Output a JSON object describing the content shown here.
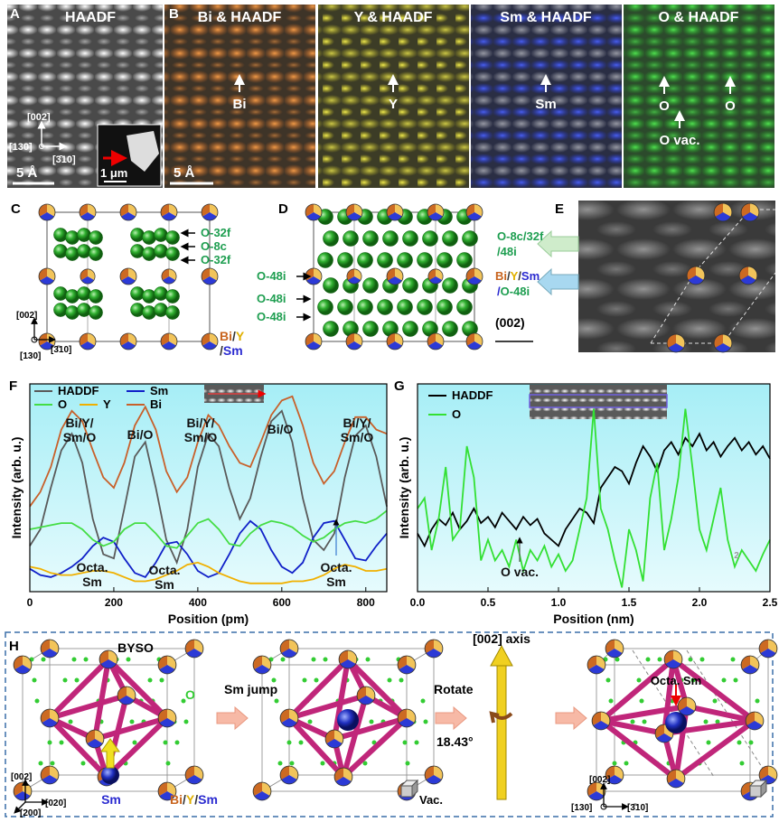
{
  "panel_A": {
    "letter": "A",
    "title": "HAADF",
    "scale_bar": "5 Å",
    "inset_scale_bar": "1 μm",
    "directions": [
      "[002]",
      "[130]",
      "[3̄10]"
    ]
  },
  "panel_B": {
    "letter": "B",
    "scale_bar": "5 Å",
    "maps": [
      {
        "title": "Bi & HAADF",
        "labels": [
          "Bi"
        ]
      },
      {
        "title": "Y & HAADF",
        "labels": [
          "Y"
        ]
      },
      {
        "title": "Sm & HAADF",
        "labels": [
          "Sm"
        ]
      },
      {
        "title": "O & HAADF",
        "labels": [
          "O",
          "O",
          "O vac."
        ]
      }
    ]
  },
  "panel_C": {
    "letter": "C",
    "sites": [
      "O-32f",
      "O-8c",
      "O-32f"
    ],
    "legend": [
      [
        "Bi",
        "/",
        "Y"
      ],
      [
        "/",
        "Sm"
      ]
    ],
    "directions": [
      "[002]",
      "[130]",
      "[3̄10]"
    ]
  },
  "panel_D": {
    "letter": "D",
    "sites": [
      "O-48i",
      "O-48i",
      "O-48i"
    ]
  },
  "panel_E": {
    "letter": "E",
    "labels": [
      [
        "O-8c/32f"
      ],
      [
        "/48i"
      ],
      [
        "Bi",
        "/",
        "Y",
        "/",
        "Sm"
      ],
      [
        "/",
        "O-48i"
      ]
    ],
    "plane": "(002)"
  },
  "panel_H": {
    "letter": "H",
    "structure": "BYSO",
    "oxygen": "O",
    "sm": "Sm",
    "legend": [
      "Bi",
      "/",
      "Y",
      "/",
      "Sm"
    ],
    "step1": "Sm jump",
    "vacancy": "Vac.",
    "step2": "Rotate",
    "angle": "18.43°",
    "axis": "[002] axis",
    "octa": "Octa. Sm",
    "directions_left": [
      "[002]",
      "[020]",
      "[200]"
    ],
    "directions_right": [
      "[002]",
      "[130]",
      "[3̄10]"
    ]
  },
  "chart_data": [
    {
      "type": "line",
      "letter": "F",
      "xlabel": "Position (pm)",
      "ylabel": "Intensity (arb. u.)",
      "x": [
        0,
        25,
        50,
        75,
        100,
        125,
        150,
        175,
        200,
        225,
        250,
        275,
        300,
        325,
        350,
        375,
        400,
        425,
        450,
        475,
        500,
        525,
        550,
        575,
        600,
        625,
        650,
        675,
        700,
        725,
        750,
        775,
        800,
        825,
        850
      ],
      "xlim": [
        0,
        850
      ],
      "xticks": [
        0,
        200,
        400,
        600,
        800
      ],
      "ylim": [
        0,
        100
      ],
      "series": [
        {
          "name": "HADDF",
          "color": "#5a5a5a",
          "values": [
            22,
            30,
            50,
            68,
            76,
            62,
            35,
            18,
            16,
            40,
            65,
            72,
            50,
            25,
            14,
            30,
            60,
            76,
            70,
            50,
            35,
            45,
            65,
            82,
            87,
            72,
            45,
            25,
            20,
            28,
            55,
            75,
            80,
            65,
            41
          ]
        },
        {
          "name": "Sm",
          "color": "#1020c8",
          "values": [
            11,
            8,
            7,
            9,
            12,
            16,
            22,
            26,
            24,
            16,
            9,
            7,
            14,
            23,
            24,
            18,
            10,
            7,
            9,
            18,
            28,
            34,
            30,
            20,
            12,
            9,
            14,
            26,
            33,
            34,
            25,
            16,
            15,
            22,
            28
          ]
        },
        {
          "name": "O",
          "color": "#44dd44",
          "values": [
            30,
            31,
            32,
            33,
            33,
            30,
            25,
            22,
            24,
            30,
            33,
            33,
            28,
            22,
            21,
            27,
            33,
            35,
            30,
            23,
            22,
            28,
            32,
            34,
            33,
            31,
            27,
            24,
            26,
            30,
            33,
            34,
            33,
            35,
            39
          ]
        },
        {
          "name": "Y",
          "color": "#f0b000",
          "values": [
            12,
            11,
            9,
            8,
            8,
            9,
            10,
            10,
            9,
            7,
            5,
            5,
            6,
            8,
            10,
            13,
            14,
            12,
            9,
            7,
            5,
            4,
            4,
            4,
            4,
            5,
            5,
            6,
            8,
            11,
            13,
            12,
            10,
            10,
            11
          ]
        },
        {
          "name": "Bi",
          "color": "#c8602a",
          "values": [
            41,
            48,
            60,
            78,
            87,
            82,
            68,
            55,
            50,
            62,
            80,
            89,
            78,
            58,
            48,
            55,
            72,
            85,
            80,
            70,
            62,
            60,
            72,
            85,
            92,
            94,
            80,
            62,
            52,
            58,
            72,
            84,
            84,
            78,
            76
          ]
        }
      ],
      "annotations": [
        {
          "lines": [
            "Bi/Y/",
            "Sm/O"
          ]
        },
        {
          "lines": [
            "Bi/O"
          ]
        },
        {
          "lines": [
            "Bi/Y/",
            "Sm/O"
          ]
        },
        {
          "lines": [
            "Bi/O"
          ]
        },
        {
          "lines": [
            "Bi/Y/",
            "Sm/O"
          ]
        },
        {
          "lines": [
            "Octa.",
            "Sm"
          ]
        },
        {
          "lines": [
            "Octa.",
            "Sm"
          ]
        },
        {
          "lines": [
            "Octa.",
            "Sm"
          ]
        }
      ]
    },
    {
      "type": "line",
      "letter": "G",
      "xlabel": "Position (nm)",
      "ylabel": "Intensity (arb. u.)",
      "x": [
        0,
        0.05,
        0.1,
        0.15,
        0.2,
        0.25,
        0.3,
        0.35,
        0.4,
        0.45,
        0.5,
        0.55,
        0.6,
        0.65,
        0.7,
        0.75,
        0.8,
        0.85,
        0.9,
        0.95,
        1,
        1.05,
        1.1,
        1.15,
        1.2,
        1.25,
        1.3,
        1.35,
        1.4,
        1.45,
        1.5,
        1.55,
        1.6,
        1.65,
        1.7,
        1.75,
        1.8,
        1.85,
        1.9,
        1.95,
        2,
        2.05,
        2.1,
        2.15,
        2.2,
        2.25,
        2.3,
        2.35,
        2.4,
        2.45,
        2.5
      ],
      "xlim": [
        0,
        2.5
      ],
      "xticks": [
        {
          "value": 0,
          "label": "0.0"
        },
        0.5,
        {
          "value": 1,
          "label": "1.0"
        },
        1.5,
        {
          "value": 2,
          "label": "2.0"
        },
        2.5
      ],
      "ylim": [
        0,
        100
      ],
      "series": [
        {
          "name": "HADDF",
          "color": "#000000",
          "values": [
            28,
            22,
            30,
            35,
            32,
            38,
            30,
            34,
            40,
            33,
            36,
            31,
            38,
            34,
            30,
            36,
            32,
            35,
            28,
            25,
            22,
            30,
            35,
            40,
            38,
            33,
            50,
            55,
            60,
            58,
            52,
            62,
            70,
            65,
            58,
            68,
            72,
            66,
            74,
            70,
            76,
            68,
            72,
            65,
            70,
            74,
            68,
            72,
            66,
            70,
            64
          ]
        },
        {
          "name": "O",
          "color": "#33e033",
          "values": [
            40,
            45,
            20,
            35,
            60,
            25,
            30,
            70,
            55,
            15,
            25,
            15,
            20,
            12,
            25,
            10,
            20,
            15,
            22,
            12,
            18,
            10,
            15,
            30,
            45,
            88,
            40,
            30,
            15,
            2,
            30,
            20,
            5,
            45,
            62,
            20,
            35,
            55,
            88,
            60,
            30,
            20,
            35,
            50,
            25,
            12,
            20,
            15,
            10,
            18,
            25
          ]
        }
      ],
      "annotations": [
        {
          "lines": [
            "O vac."
          ]
        },
        {
          "lines": [
            "2"
          ]
        }
      ]
    }
  ]
}
